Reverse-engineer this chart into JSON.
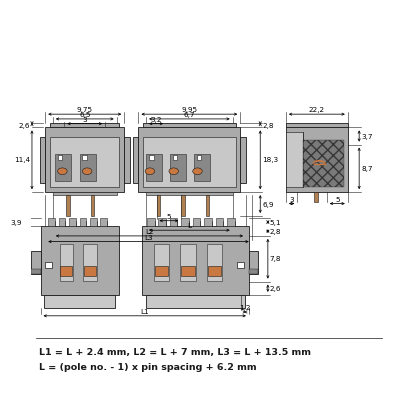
{
  "bg_color": "#ffffff",
  "lc": "#1a1a1a",
  "gc": "#aaaaaa",
  "gl": "#c8c8c8",
  "gd": "#888888",
  "gdk": "#666666",
  "oc": "#c87840",
  "formula_line1": "L1 = L + 2.4 mm, L2 = L + 7 mm, L3 = L + 13.5 mm",
  "formula_line2": "L = (pole no. - 1) x pin spacing + 6.2 mm",
  "d975": "9,75",
  "d65": "6,5",
  "d3a": "3",
  "d995": "9,95",
  "d67": "6,7",
  "d32": "3,2",
  "d26a": "2,6",
  "d114": "11,4",
  "d28a": "2,8",
  "d69": "6,9",
  "d183": "18,3",
  "d5a": "5",
  "d222": "22,2",
  "d37": "3,7",
  "d87": "8,7",
  "d3b": "3",
  "d5b": "5",
  "d39": "3,9",
  "d51": "5,1",
  "d28b": "2,8",
  "d78": "7,8",
  "d26b": "2,6",
  "d12": "1,2",
  "lL": "L",
  "lL1": "L1",
  "lL2": "L2",
  "lL3": "L3"
}
